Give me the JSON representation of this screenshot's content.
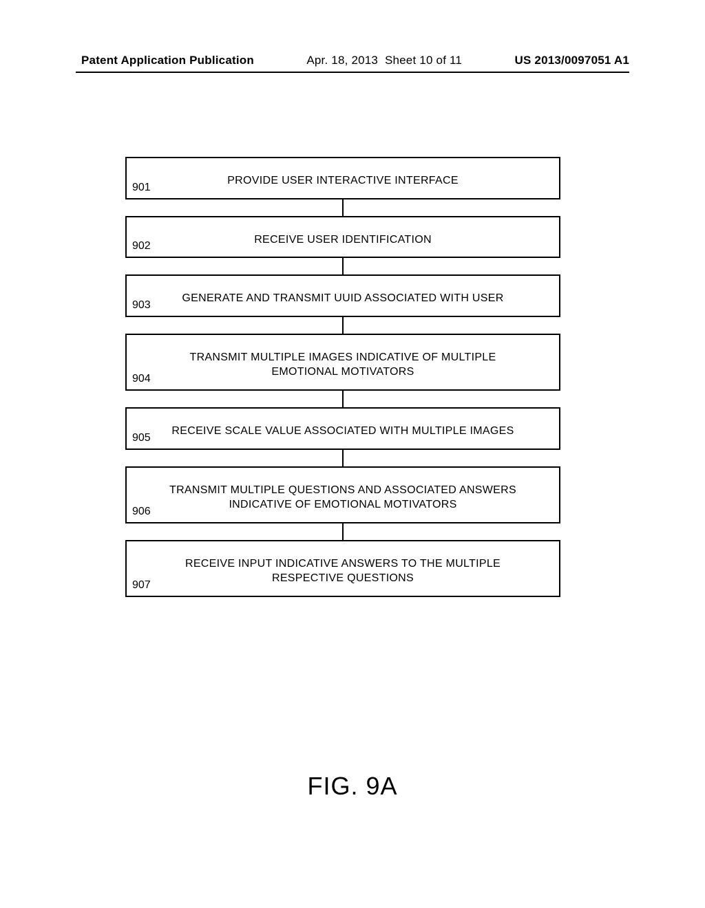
{
  "header": {
    "publication_label": "Patent Application Publication",
    "date": "Apr. 18, 2013",
    "sheet": "Sheet 10 of 11",
    "doc_number": "US 2013/0097051 A1"
  },
  "figure_caption": "FIG. 9A",
  "flowchart": {
    "box_border_color": "#000000",
    "box_border_width": 2,
    "connector_color": "#000000",
    "connector_width": 2,
    "connector_height": 24,
    "font_size": 16,
    "steps": [
      {
        "num": "901",
        "text": "PROVIDE USER INTERACTIVE INTERFACE"
      },
      {
        "num": "902",
        "text": "RECEIVE USER IDENTIFICATION"
      },
      {
        "num": "903",
        "text": "GENERATE AND TRANSMIT UUID ASSOCIATED WITH USER"
      },
      {
        "num": "904",
        "text": "TRANSMIT  MULTIPLE IMAGES INDICATIVE OF MULTIPLE  EMOTIONAL MOTIVATORS"
      },
      {
        "num": "905",
        "text": "RECEIVE SCALE VALUE ASSOCIATED WITH MULTIPLE IMAGES"
      },
      {
        "num": "906",
        "text": "TRANSMIT MULTIPLE QUESTIONS AND ASSOCIATED ANSWERS INDICATIVE OF EMOTIONAL MOTIVATORS"
      },
      {
        "num": "907",
        "text": "RECEIVE INPUT INDICATIVE ANSWERS TO THE MULTIPLE RESPECTIVE QUESTIONS"
      }
    ]
  }
}
